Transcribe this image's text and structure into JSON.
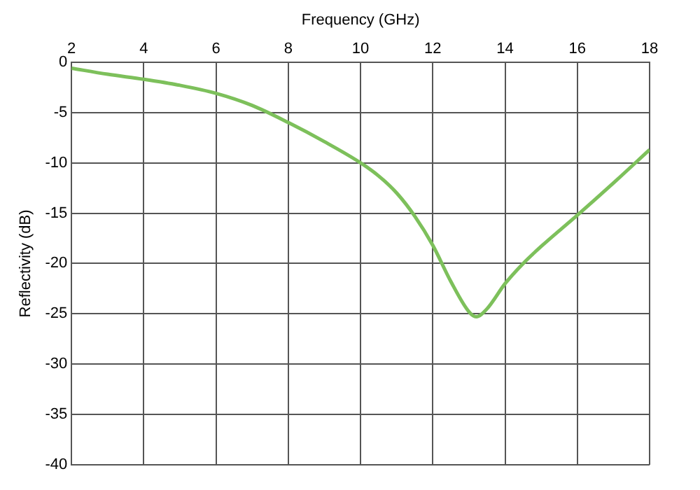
{
  "chart_data": {
    "type": "line",
    "xlabel": "Frequency (GHz)",
    "ylabel": "Reflectivity (dB)",
    "x": [
      2,
      3,
      4,
      5,
      6,
      7,
      8,
      9,
      10,
      10.5,
      11,
      11.5,
      12,
      12.5,
      13,
      13.2,
      13.5,
      14,
      14.5,
      15,
      16,
      17,
      18
    ],
    "series": [
      {
        "color": "#7dc05b",
        "values": [
          -0.6,
          -1.2,
          -1.7,
          -2.3,
          -3.1,
          -4.3,
          -6.0,
          -7.9,
          -10.0,
          -11.3,
          -13.0,
          -15.3,
          -18.2,
          -21.8,
          -24.8,
          -25.3,
          -24.5,
          -22.0,
          -20.0,
          -18.3,
          -15.2,
          -12.0,
          -8.7
        ]
      }
    ],
    "xlim": [
      2,
      18
    ],
    "xticks": [
      2,
      4,
      6,
      8,
      10,
      12,
      14,
      16,
      18
    ],
    "ylim": [
      -40,
      0
    ],
    "yticks": [
      -40,
      -35,
      -30,
      -25,
      -20,
      -15,
      -10,
      -5,
      0
    ],
    "grid": true,
    "legend": false,
    "marker": "none",
    "line_style": "solid"
  }
}
